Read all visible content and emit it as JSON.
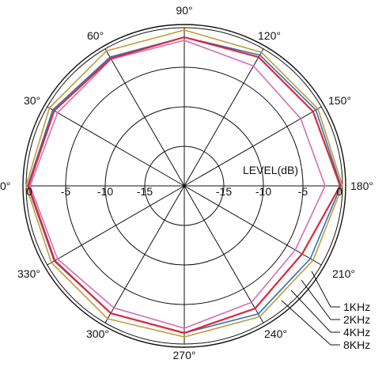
{
  "chart_data": {
    "type": "polar-line",
    "title": "",
    "level_label": "LEVEL(dB)",
    "r_range": [
      -20,
      0
    ],
    "r_ticks": [
      0,
      -5,
      -10,
      -15
    ],
    "r_tick_labels": [
      "0",
      "-5",
      "-10",
      "-15"
    ],
    "theta_ticks": [
      0,
      30,
      60,
      90,
      120,
      150,
      180,
      210,
      240,
      270,
      300,
      330
    ],
    "theta_tick_labels": [
      "0°",
      "30°",
      "60°",
      "90°",
      "120°",
      "150°",
      "180°",
      "210°",
      "240°",
      "270°",
      "300°",
      "330°"
    ],
    "grid": true,
    "legend_position": "bottom-right",
    "series": [
      {
        "name": "1KHz",
        "color": "#c49a3a",
        "angles": [
          0,
          30,
          60,
          90,
          120,
          150,
          180,
          210,
          240,
          270,
          300,
          330
        ],
        "values": [
          0,
          -0.3,
          -0.3,
          -0.3,
          -0.5,
          -0.5,
          0,
          -1.2,
          -0.9,
          -0.9,
          -0.6,
          -0.6
        ]
      },
      {
        "name": "2KHz",
        "color": "#2e6fb0",
        "angles": [
          0,
          30,
          60,
          90,
          120,
          150,
          180,
          210,
          240,
          270,
          300,
          330
        ],
        "values": [
          -0.2,
          -0.8,
          -1.2,
          -1.2,
          -0.9,
          -0.8,
          -0.2,
          -1.6,
          -1.3,
          -1.4,
          -1.4,
          -1.0
        ]
      },
      {
        "name": "4KHz",
        "color": "#d070b8",
        "angles": [
          0,
          30,
          60,
          90,
          120,
          150,
          180,
          210,
          240,
          270,
          300,
          330
        ],
        "values": [
          -0.5,
          -1.5,
          -1.5,
          -1.6,
          -2.5,
          -3.0,
          -2.2,
          -3.8,
          -3.0,
          -2.0,
          -2.2,
          -1.5
        ]
      },
      {
        "name": "8KHz",
        "color": "#d8283c",
        "angles": [
          0,
          30,
          60,
          90,
          120,
          150,
          180,
          210,
          240,
          270,
          300,
          330
        ],
        "values": [
          -0.3,
          -1.0,
          -1.4,
          -1.2,
          -1.2,
          -1.2,
          -0.3,
          -2.8,
          -2.1,
          -1.4,
          -1.4,
          -1.1
        ]
      }
    ]
  }
}
